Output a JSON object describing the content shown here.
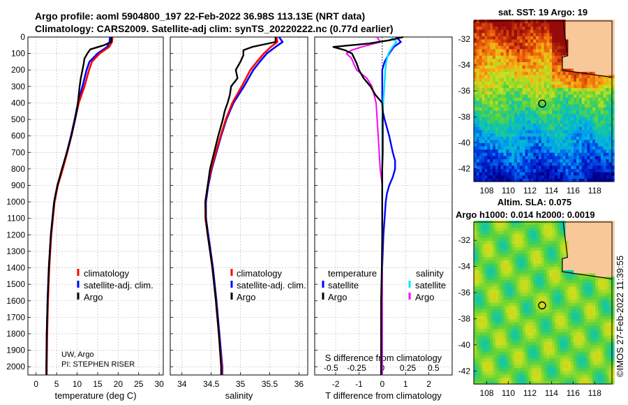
{
  "header": {
    "title_line1": "Argo profile: aoml 5904800_197 22-Feb-2022 36.98S 113.13E (NRT data)",
    "title_line2": "Climatology: CARS2009. Satellite-adj clim: synTS_20220222.nc (0.77d earlier)"
  },
  "depth_ticks": [
    "0",
    "100",
    "200",
    "300",
    "400",
    "500",
    "600",
    "700",
    "800",
    "900",
    "1000",
    "1100",
    "1200",
    "1300",
    "1400",
    "1500",
    "1600",
    "1700",
    "1800",
    "1900",
    "2000"
  ],
  "colors": {
    "climatology": "#ff0000",
    "satellite": "#0000ff",
    "argo": "#000000",
    "sal_satellite": "#00e5ff",
    "sal_argo": "#ff00ff"
  },
  "credit": {
    "line1": "UW, Argo",
    "line2": "PI: STEPHEN RISER"
  },
  "watermark": "©IMOS 27-Feb-2022 11:39:55",
  "chart_data": [
    {
      "type": "line",
      "id": "temperature",
      "xlabel": "temperature (deg C)",
      "ylabel": "",
      "xlim": [
        -2,
        31
      ],
      "ylim": [
        2050,
        0
      ],
      "xticks": [
        "0",
        "5",
        "10",
        "15",
        "20",
        "25",
        "30"
      ],
      "legend": [
        "climatology",
        "satellite-adj. clim.",
        "Argo"
      ],
      "series": [
        {
          "name": "climatology",
          "depth": [
            0,
            30,
            60,
            100,
            150,
            200,
            300,
            400,
            500,
            600,
            700,
            800,
            900,
            1000,
            1200,
            1400,
            1600,
            1800,
            2000,
            2050
          ],
          "values": [
            18.6,
            18.5,
            17.8,
            15.5,
            13.6,
            12.9,
            11.8,
            10.4,
            9.5,
            8.6,
            7.6,
            6.5,
            5.3,
            4.5,
            3.7,
            3.2,
            2.9,
            2.7,
            2.6,
            2.6
          ]
        },
        {
          "name": "satellite-adj. clim.",
          "depth": [
            0,
            30,
            60,
            100,
            150,
            200,
            300,
            400,
            500,
            600,
            700,
            800,
            900,
            1000,
            1200,
            1400,
            1600,
            1800,
            2000,
            2050
          ],
          "values": [
            18.0,
            17.9,
            17.3,
            15.0,
            13.0,
            12.3,
            11.3,
            10.2,
            9.4,
            8.5,
            7.5,
            6.4,
            5.2,
            4.4,
            3.6,
            3.1,
            2.8,
            2.6,
            2.5,
            2.5
          ]
        },
        {
          "name": "Argo",
          "depth": [
            0,
            30,
            50,
            75,
            100,
            130,
            160,
            200,
            250,
            300,
            350,
            400,
            450,
            500,
            600,
            700,
            800,
            900,
            1000,
            1200,
            1400,
            1600,
            1800,
            2000,
            2050
          ],
          "values": [
            18.4,
            18.3,
            16.5,
            13.2,
            12.5,
            11.8,
            11.6,
            11.3,
            10.9,
            10.6,
            10.4,
            10.2,
            9.9,
            9.5,
            8.6,
            7.5,
            6.3,
            5.2,
            4.4,
            3.6,
            3.1,
            2.8,
            2.6,
            2.5,
            2.5
          ]
        }
      ]
    },
    {
      "type": "line",
      "id": "salinity",
      "xlabel": "salinity",
      "ylabel": "",
      "xlim": [
        33.8,
        36.15
      ],
      "ylim": [
        2050,
        0
      ],
      "xticks": [
        "34",
        "34.5",
        "35",
        "35.5",
        "36"
      ],
      "legend": [
        "climatology",
        "satellite-adj. clim.",
        "Argo"
      ],
      "series": [
        {
          "name": "climatology",
          "depth": [
            0,
            30,
            60,
            100,
            150,
            200,
            300,
            400,
            500,
            600,
            700,
            800,
            900,
            1000,
            1100,
            1200,
            1400,
            1600,
            1800,
            2000,
            2050
          ],
          "values": [
            35.62,
            35.63,
            35.52,
            35.4,
            35.28,
            35.17,
            35.02,
            34.86,
            34.75,
            34.66,
            34.58,
            34.5,
            34.44,
            34.4,
            34.4,
            34.44,
            34.52,
            34.58,
            34.63,
            34.68,
            34.68
          ]
        },
        {
          "name": "satellite-adj. clim.",
          "depth": [
            0,
            30,
            60,
            100,
            150,
            200,
            300,
            400,
            500,
            600,
            700,
            800,
            900,
            1000,
            1100,
            1200,
            1400,
            1600,
            1800,
            2000,
            2050
          ],
          "values": [
            35.66,
            35.72,
            35.6,
            35.45,
            35.33,
            35.22,
            35.06,
            34.88,
            34.76,
            34.67,
            34.59,
            34.51,
            34.45,
            34.41,
            34.41,
            34.45,
            34.53,
            34.59,
            34.64,
            34.69,
            34.69
          ]
        },
        {
          "name": "Argo",
          "depth": [
            0,
            30,
            60,
            80,
            110,
            150,
            200,
            250,
            300,
            350,
            400,
            450,
            500,
            600,
            700,
            800,
            900,
            1000,
            1100,
            1200,
            1400,
            1600,
            1800,
            2000,
            2050
          ],
          "values": [
            35.6,
            35.6,
            35.2,
            35.05,
            35.05,
            35.0,
            34.92,
            34.95,
            34.84,
            34.82,
            34.78,
            34.73,
            34.7,
            34.62,
            34.55,
            34.48,
            34.44,
            34.4,
            34.41,
            34.44,
            34.52,
            34.58,
            34.63,
            34.67,
            34.67
          ]
        }
      ]
    },
    {
      "type": "line",
      "id": "difference",
      "xlabel": "T difference from climatology",
      "x2label": "S difference from climatology",
      "xlim": [
        -2.9,
        3.0
      ],
      "ylim": [
        2050,
        0
      ],
      "xticks": [
        "-2",
        "-1",
        "0",
        "1",
        "2"
      ],
      "x2ticks": [
        "-0.5",
        "-0.25",
        "0",
        "0.25",
        "0.5"
      ],
      "legend_temperature_title": "temperature",
      "legend_salinity_title": "salinity",
      "legend_temperature": [
        "satellite",
        "Argo"
      ],
      "legend_salinity": [
        "satellite",
        "Argo"
      ],
      "series": [
        {
          "name": "temperature satellite",
          "depth": [
            0,
            30,
            60,
            100,
            150,
            200,
            300,
            400,
            450,
            500,
            600,
            700,
            750,
            800,
            850,
            900,
            950,
            1000,
            1100,
            1200,
            1400,
            1600,
            1800,
            2000,
            2050
          ],
          "values": [
            0.6,
            0.8,
            0.5,
            0.3,
            0.1,
            0.0,
            0.0,
            0.0,
            0.02,
            0.1,
            0.3,
            0.45,
            0.55,
            0.55,
            0.45,
            0.3,
            0.2,
            0.15,
            0.1,
            0.05,
            0.0,
            0.0,
            -0.05,
            -0.05,
            -0.05
          ]
        },
        {
          "name": "temperature Argo",
          "depth": [
            0,
            20,
            40,
            60,
            80,
            100,
            130,
            160,
            200,
            250,
            300,
            350,
            400,
            450,
            500,
            600,
            700,
            800,
            900,
            1000,
            1200,
            1400,
            1600,
            1800,
            2000,
            2050
          ],
          "values": [
            0.9,
            0.3,
            -0.6,
            -2.1,
            -1.6,
            -1.3,
            -1.2,
            -1.1,
            -1.0,
            -0.8,
            -0.5,
            -0.3,
            0.0,
            0.02,
            0.02,
            0.02,
            0.02,
            0.0,
            0.0,
            0.0,
            0.0,
            -0.02,
            -0.05,
            -0.05,
            -0.05,
            -0.05
          ]
        },
        {
          "name": "salinity satellite",
          "depth": [
            0,
            30,
            60,
            100,
            150,
            200,
            300,
            400,
            500,
            700,
            900,
            1000,
            1200,
            1400,
            1600,
            1800,
            2000,
            2050
          ],
          "values": [
            0.08,
            0.14,
            0.1,
            0.06,
            0.04,
            0.03,
            0.02,
            0.01,
            0.0,
            0.0,
            0.0,
            0.0,
            0.0,
            0.0,
            0.0,
            0.0,
            0.0,
            0.0
          ]
        },
        {
          "name": "salinity Argo",
          "depth": [
            0,
            30,
            60,
            80,
            100,
            130,
            160,
            200,
            250,
            300,
            400,
            500,
            600,
            800,
            900,
            1000,
            1100,
            1200,
            1400,
            1600,
            1800,
            2000,
            2050
          ],
          "values": [
            -0.05,
            -0.02,
            -0.2,
            -0.3,
            -0.35,
            -0.3,
            -0.28,
            -0.25,
            -0.15,
            -0.1,
            -0.06,
            -0.05,
            -0.04,
            -0.02,
            0.0,
            0.0,
            0.0,
            0.0,
            0.0,
            0.0,
            0.0,
            0.0,
            0.0
          ]
        }
      ]
    },
    {
      "type": "heatmap",
      "id": "sst_map",
      "title": "sat. SST: 19 Argo: 19",
      "xticks": [
        "108",
        "110",
        "112",
        "114",
        "116",
        "118"
      ],
      "yticks": [
        "-32",
        "-34",
        "-36",
        "-38",
        "-40",
        "-42"
      ],
      "xlim": [
        106.8,
        119.6
      ],
      "ylim": [
        -43,
        -30.6
      ],
      "argo_position": [
        113.13,
        -36.98
      ]
    },
    {
      "type": "heatmap",
      "id": "sla_map",
      "title1": "Altim. SLA: 0.075",
      "title2": "Argo h1000: 0.014 h2000: 0.0019",
      "xticks": [
        "108",
        "110",
        "112",
        "114",
        "116",
        "118"
      ],
      "yticks": [
        "-32",
        "-34",
        "-36",
        "-38",
        "-40",
        "-42"
      ],
      "xlim": [
        106.8,
        119.6
      ],
      "ylim": [
        -43,
        -30.6
      ],
      "argo_position": [
        113.13,
        -36.98
      ]
    }
  ]
}
